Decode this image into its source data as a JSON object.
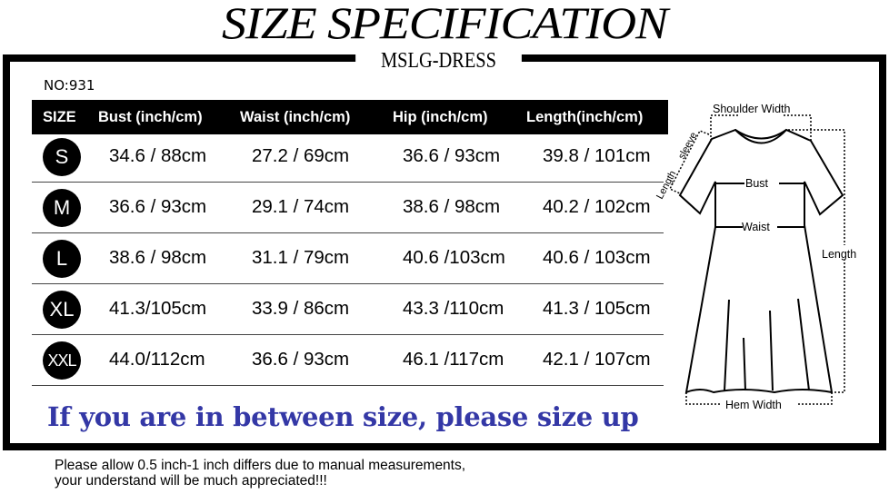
{
  "title": "SIZE SPECIFICATION",
  "brand": "MSLG-DRESS",
  "model_no": "NO:931",
  "table": {
    "headers": [
      "SIZE",
      "Bust (inch/cm)",
      "Waist (inch/cm)",
      "Hip (inch/cm)",
      "Length(inch/cm)"
    ],
    "rows": [
      {
        "size": "S",
        "bust": "34.6 / 88cm",
        "waist": "27.2 / 69cm",
        "hip": "36.6 / 93cm",
        "length": "39.8 / 101cm"
      },
      {
        "size": "M",
        "bust": "36.6 / 93cm",
        "waist": "29.1 / 74cm",
        "hip": "38.6 / 98cm",
        "length": "40.2 / 102cm"
      },
      {
        "size": "L",
        "bust": "38.6 / 98cm",
        "waist": "31.1 / 79cm",
        "hip": "40.6 /103cm",
        "length": "40.6 / 103cm"
      },
      {
        "size": "XL",
        "bust": "41.3/105cm",
        "waist": "33.9 / 86cm",
        "hip": "43.3 /110cm",
        "length": "41.3 / 105cm"
      },
      {
        "size": "XXL",
        "bust": "44.0/112cm",
        "waist": "36.6 / 93cm",
        "hip": "46.1 /117cm",
        "length": "42.1 / 107cm"
      }
    ]
  },
  "diagram": {
    "shoulder": "Shoulder Width",
    "sleeve1": "sleeve",
    "sleeve2": "Length",
    "bust": "Bust",
    "waist": "Waist",
    "length": "Length",
    "hem": "Hem Width"
  },
  "tip": "If you are in between size, please size up",
  "note": [
    "Please allow 0.5 inch-1 inch differs due to manual measurements,",
    "your understand will be much appreciated!!!"
  ],
  "colors": {
    "tip": "#3438a6",
    "header_bg": "#000000"
  }
}
